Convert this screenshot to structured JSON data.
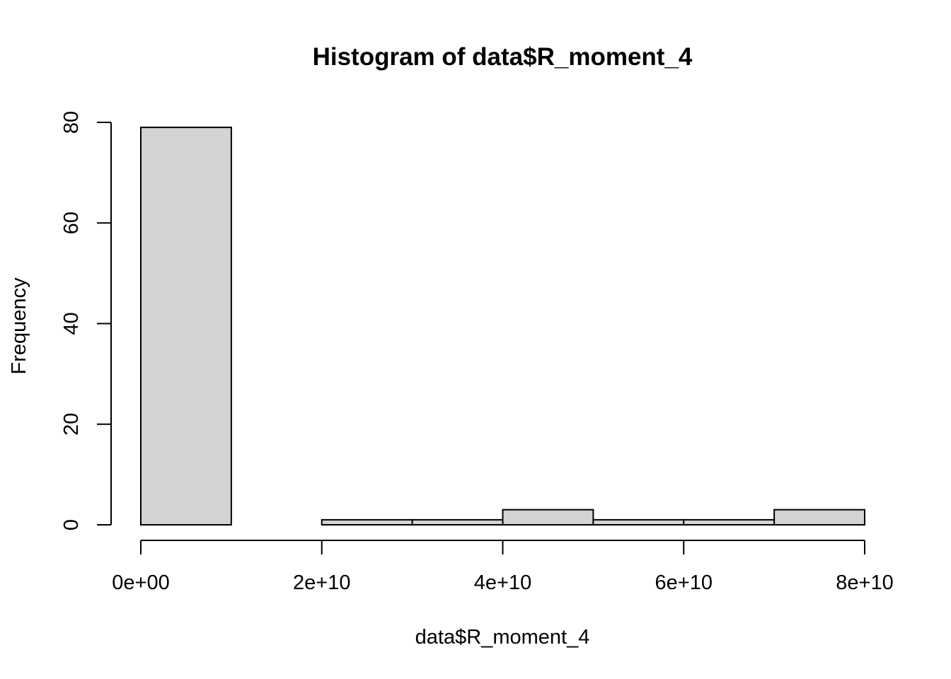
{
  "chart_data": {
    "type": "bar",
    "subtype": "histogram",
    "title": "Histogram of data$R_moment_4",
    "xlabel": "data$R_moment_4",
    "ylabel": "Frequency",
    "bins": [
      {
        "start": 0,
        "end": 10000000000,
        "count": 79
      },
      {
        "start": 10000000000,
        "end": 20000000000,
        "count": 0
      },
      {
        "start": 20000000000,
        "end": 30000000000,
        "count": 1
      },
      {
        "start": 30000000000,
        "end": 40000000000,
        "count": 1
      },
      {
        "start": 40000000000,
        "end": 50000000000,
        "count": 3
      },
      {
        "start": 50000000000,
        "end": 60000000000,
        "count": 1
      },
      {
        "start": 60000000000,
        "end": 70000000000,
        "count": 1
      },
      {
        "start": 70000000000,
        "end": 80000000000,
        "count": 3
      }
    ],
    "xlim": [
      0,
      80000000000
    ],
    "ylim": [
      0,
      80
    ],
    "x_ticks": [
      {
        "value": 0,
        "label": "0e+00"
      },
      {
        "value": 20000000000,
        "label": "2e+10"
      },
      {
        "value": 40000000000,
        "label": "4e+10"
      },
      {
        "value": 60000000000,
        "label": "6e+10"
      },
      {
        "value": 80000000000,
        "label": "8e+10"
      }
    ],
    "y_ticks": [
      {
        "value": 0,
        "label": "0"
      },
      {
        "value": 20,
        "label": "20"
      },
      {
        "value": 40,
        "label": "40"
      },
      {
        "value": 60,
        "label": "60"
      },
      {
        "value": 80,
        "label": "80"
      }
    ],
    "bar_color": "#d3d3d3",
    "edge_color": "#000000",
    "grid": false,
    "legend": false
  }
}
